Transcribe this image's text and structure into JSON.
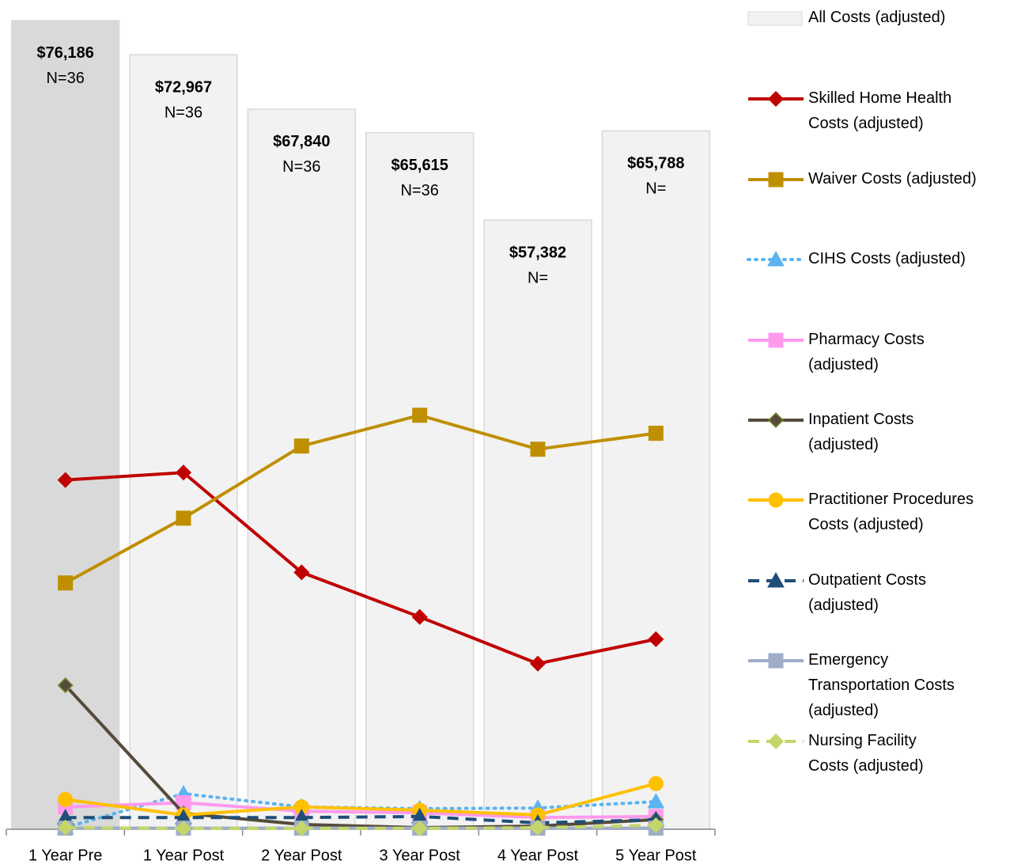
{
  "chart_data": {
    "type": "bar_line",
    "categories": [
      "1 Year Pre",
      "1 Year Post",
      "2 Year Post",
      "3 Year Post",
      "4 Year Post",
      "5 Year Post"
    ],
    "ylim": [
      0,
      77000
    ],
    "bar_series": {
      "name": "All Costs (adjusted)",
      "colors": [
        "#d9d9d9",
        "#f2f2f2",
        "#f2f2f2",
        "#f2f2f2",
        "#f2f2f2",
        "#f2f2f2"
      ],
      "values": [
        76186,
        72967,
        67840,
        65615,
        57382,
        65788
      ],
      "value_labels": [
        "$76,186",
        "$72,967",
        "$67,840",
        "$65,615",
        "$57,382",
        "$65,788"
      ],
      "count_labels": [
        "N=36",
        "N=36",
        "N=36",
        "N=36",
        "N=",
        "N="
      ]
    },
    "series": [
      {
        "name": "Skilled Home Health Costs (adjusted)",
        "color": "#c00000",
        "marker": "diamond",
        "dash": "solid",
        "values": [
          32900,
          33600,
          24200,
          20000,
          15600,
          17900
        ]
      },
      {
        "name": "Waiver Costs (adjusted)",
        "color": "#bf8f00",
        "marker": "square",
        "dash": "solid",
        "values": [
          23200,
          29300,
          36100,
          39000,
          35800,
          37300
        ]
      },
      {
        "name": "CIHS Costs (adjusted)",
        "color": "#5bb4f0",
        "marker": "triangle",
        "dash": "dotted",
        "values": [
          150,
          3350,
          2100,
          1940,
          2000,
          2600
        ]
      },
      {
        "name": "Pharmacy Costs (adjusted)",
        "color": "#ff99ee",
        "marker": "square",
        "dash": "solid",
        "values": [
          2100,
          2500,
          1700,
          1550,
          1100,
          1200
        ]
      },
      {
        "name": "Inpatient Costs (adjusted)",
        "color": "#554b3a",
        "marker": "diamond",
        "dash": "solid",
        "values": [
          13560,
          1500,
          450,
          150,
          300,
          900
        ]
      },
      {
        "name": "Practitioner Procedures Costs (adjusted)",
        "color": "#ffc000",
        "marker": "circle",
        "dash": "solid",
        "values": [
          2800,
          1340,
          2100,
          1800,
          1340,
          4300
        ]
      },
      {
        "name": "Outpatient Costs (adjusted)",
        "color": "#1f4e79",
        "marker": "triangle",
        "dash": "dashed",
        "values": [
          1100,
          1100,
          1100,
          1200,
          600,
          900
        ]
      },
      {
        "name": "Emergency Transportation Costs (adjusted)",
        "color": "#9fadc8",
        "marker": "square",
        "dash": "solid",
        "values": [
          100,
          100,
          100,
          100,
          100,
          100
        ]
      },
      {
        "name": "Nursing Facility Costs (adjusted)",
        "color": "#c4d66a",
        "marker": "diamond",
        "dash": "dashed",
        "values": [
          150,
          70,
          70,
          70,
          150,
          370
        ]
      }
    ]
  }
}
